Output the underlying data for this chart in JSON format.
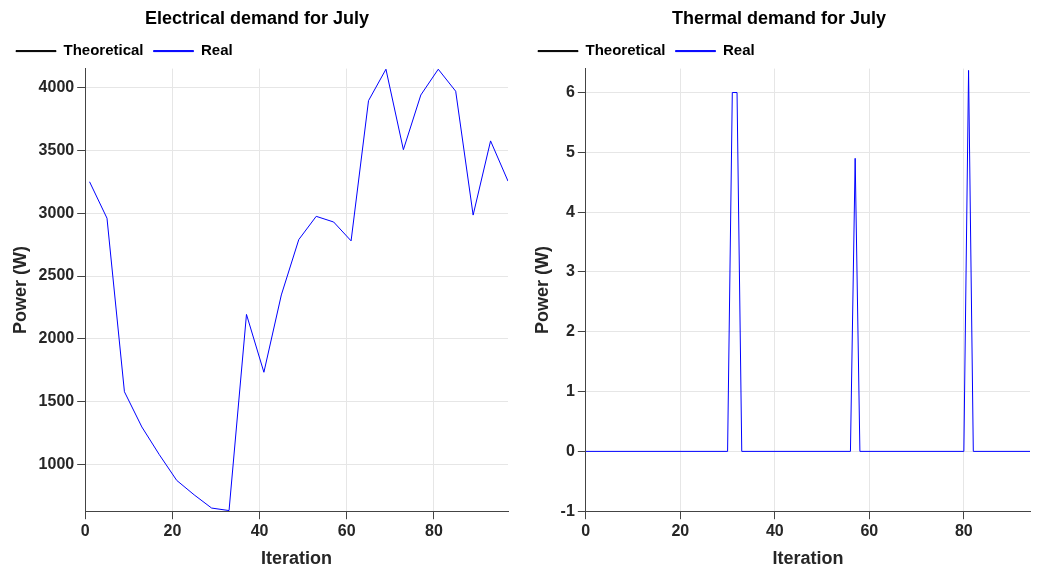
{
  "chart_data": [
    {
      "type": "line",
      "title": "Electrical demand for July",
      "xlabel": "Iteration",
      "ylabel": "Power (W)",
      "x": [
        1,
        5,
        9,
        13,
        17,
        21,
        25,
        29,
        33,
        37,
        41,
        45,
        49,
        53,
        57,
        61,
        65,
        69,
        73,
        77,
        81,
        85,
        89,
        93,
        97
      ],
      "series": [
        {
          "name": "Theoretical",
          "color": "#000000",
          "values": [
            null,
            null,
            null,
            null,
            null,
            null,
            null,
            null,
            null,
            null,
            null,
            null,
            null,
            null,
            null,
            null,
            null,
            null,
            null,
            null,
            null,
            null,
            null,
            null,
            null
          ]
        },
        {
          "name": "Real",
          "color": "#0000ff",
          "values": [
            3250,
            2960,
            1580,
            1300,
            1080,
            875,
            760,
            655,
            635,
            2195,
            1735,
            2350,
            2790,
            2975,
            2930,
            2780,
            3895,
            4145,
            3505,
            3940,
            4145,
            3970,
            2985,
            3575,
            3255
          ]
        }
      ],
      "xlim": [
        0,
        97
      ],
      "xticks": [
        0,
        20,
        40,
        60,
        80
      ],
      "ylim": [
        630,
        4150
      ],
      "yticks": [
        1000,
        1500,
        2000,
        2500,
        3000,
        3500,
        4000
      ],
      "grid": true,
      "legend": "top left",
      "marker": "none",
      "line_style": "solid"
    },
    {
      "type": "line",
      "title": "Thermal demand for July",
      "xlabel": "Iteration",
      "ylabel": "Power (W)",
      "x": [
        0,
        30,
        31,
        32,
        33,
        56,
        57,
        58,
        80,
        81,
        82,
        94
      ],
      "series": [
        {
          "name": "Theoretical",
          "color": "#000000",
          "values": [
            null,
            null,
            null,
            null,
            null,
            null,
            null,
            null,
            null,
            null,
            null,
            null
          ]
        },
        {
          "name": "Real",
          "color": "#0000ff",
          "values": [
            0,
            0,
            6,
            6,
            0,
            0,
            4.9,
            0,
            0,
            6.37,
            0,
            0
          ]
        }
      ],
      "xlim": [
        0,
        94
      ],
      "xticks": [
        0,
        20,
        40,
        60,
        80
      ],
      "ylim": [
        -1,
        6.4
      ],
      "yticks": [
        -1,
        0,
        1,
        2,
        3,
        4,
        5,
        6
      ],
      "grid": true,
      "legend": "top left",
      "marker": "none",
      "line_style": "solid"
    }
  ]
}
